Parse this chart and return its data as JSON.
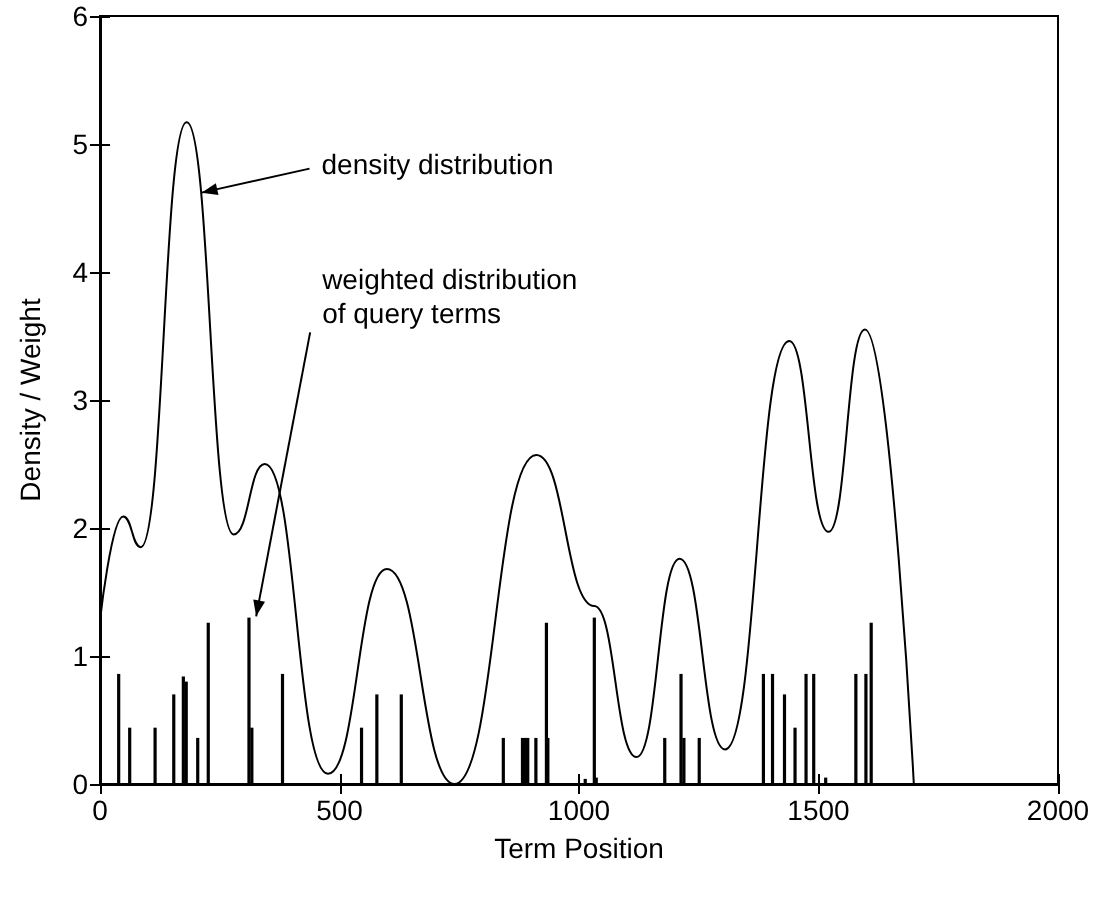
{
  "chart_data": {
    "type": "line",
    "xlabel": "Term Position",
    "ylabel": "Density / Weight",
    "xlim": [
      0,
      2000
    ],
    "xticks": [
      0,
      500,
      1000,
      1500,
      2000
    ],
    "ylim": [
      0,
      6
    ],
    "yticks": [
      0,
      1,
      2,
      3,
      4,
      5,
      6
    ],
    "grid": false,
    "marker": "none",
    "line_style": "solid",
    "series": [
      {
        "color": "#000000",
        "x": [
          0,
          48.6,
          85,
          181,
          279,
          344,
          476,
          599,
          740,
          911,
          1032,
          1120,
          1210,
          1305,
          1439,
          1521,
          1597,
          1699
        ],
        "values": [
          1.28,
          2.09,
          1.85,
          5.17,
          1.95,
          2.5,
          0.08,
          1.68,
          0,
          2.57,
          1.39,
          0.21,
          1.76,
          0.27,
          3.46,
          1.97,
          3.55,
          0
        ]
      },
      {
        "type": "bar",
        "color": "#000000",
        "x": [
          39,
          62,
          115,
          154,
          174,
          180,
          204,
          226,
          311,
          317,
          381,
          546,
          578,
          629,
          842,
          882,
          888,
          893,
          910,
          932,
          935,
          1013,
          1032,
          1036,
          1179,
          1213,
          1219,
          1251,
          1385,
          1404,
          1429,
          1451,
          1474,
          1490,
          1515,
          1578,
          1599,
          1610
        ],
        "values": [
          0.86,
          0.44,
          0.44,
          0.7,
          0.84,
          0.8,
          0.36,
          1.26,
          1.3,
          0.44,
          0.86,
          0.44,
          0.7,
          0.7,
          0.36,
          0.36,
          0.36,
          0.36,
          0.36,
          1.26,
          0.36,
          0.04,
          1.3,
          0.05,
          0.36,
          0.86,
          0.36,
          0.36,
          0.86,
          0.86,
          0.7,
          0.44,
          0.86,
          0.86,
          0.05,
          0.86,
          0.86,
          1.26
        ]
      }
    ],
    "annotations": [
      {
        "text": "density distribution",
        "x": 212,
        "y": 4.62
      },
      {
        "text": "weighted distribution\nof query terms",
        "x": 326,
        "y": 1.31
      }
    ]
  }
}
